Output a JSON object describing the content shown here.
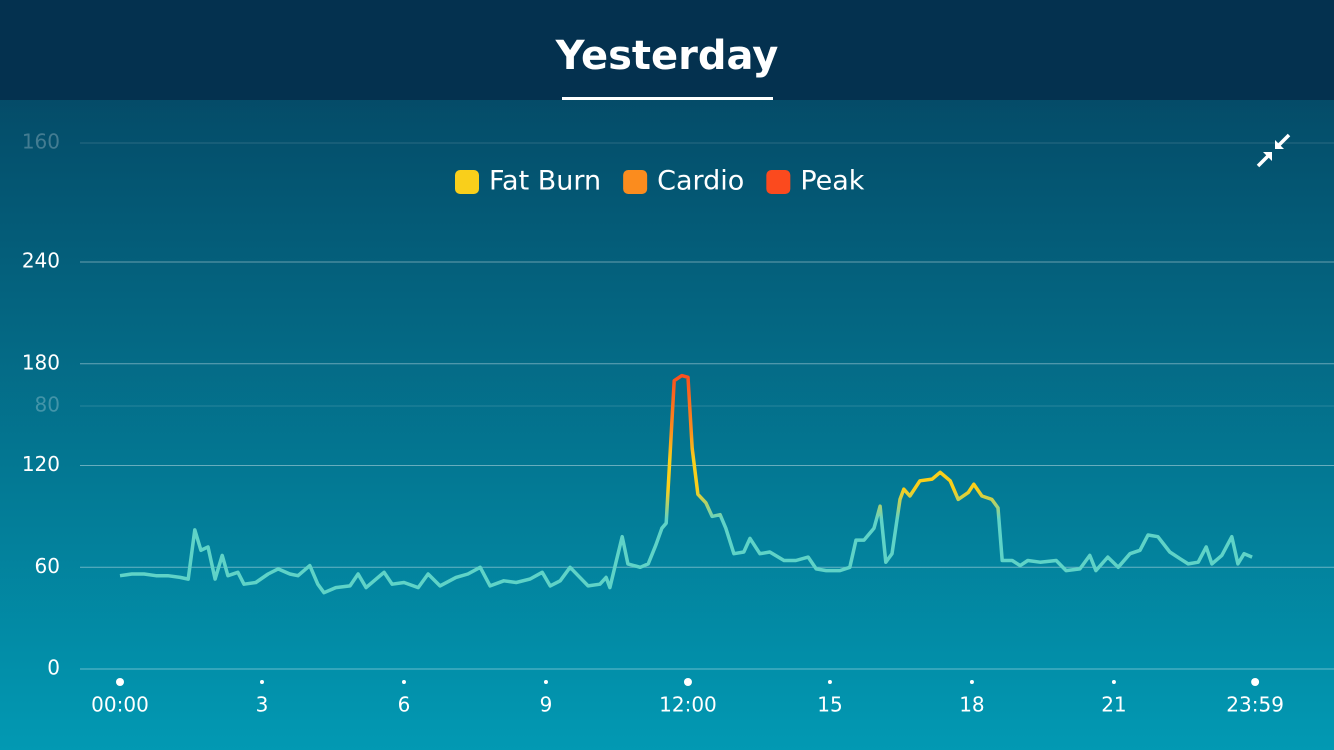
{
  "chart_data": {
    "type": "line",
    "title": "Yesterday",
    "zones": [
      {
        "name": "Fat Burn",
        "color": "#f9cf1b"
      },
      {
        "name": "Cardio",
        "color": "#fb8c1e"
      },
      {
        "name": "Peak",
        "color": "#fb4a1e"
      }
    ],
    "line_color": "#5fd3c7",
    "x": [
      0.0,
      0.25,
      0.51,
      0.76,
      1.01,
      1.27,
      1.44,
      1.58,
      1.71,
      1.86,
      2.01,
      2.16,
      2.28,
      2.49,
      2.62,
      2.87,
      3.13,
      3.34,
      3.59,
      3.76,
      4.01,
      4.18,
      4.31,
      4.56,
      4.86,
      5.03,
      5.2,
      5.58,
      5.75,
      6.0,
      6.3,
      6.51,
      6.76,
      7.1,
      7.35,
      7.61,
      7.82,
      8.11,
      8.37,
      8.66,
      8.92,
      9.09,
      9.3,
      9.51,
      9.68,
      9.89,
      10.14,
      10.27,
      10.35,
      10.48,
      10.61,
      10.73,
      10.99,
      11.16,
      11.32,
      11.45,
      11.54,
      11.71,
      11.87,
      12.0,
      12.09,
      12.21,
      12.38,
      12.51,
      12.68,
      12.8,
      12.97,
      13.18,
      13.31,
      13.52,
      13.73,
      14.03,
      14.28,
      14.54,
      14.71,
      14.92,
      15.21,
      15.42,
      15.55,
      15.72,
      15.93,
      16.06,
      16.18,
      16.31,
      16.48,
      16.56,
      16.69,
      16.9,
      17.16,
      17.33,
      17.54,
      17.71,
      17.92,
      18.04,
      18.21,
      18.42,
      18.55,
      18.64,
      18.85,
      19.02,
      19.18,
      19.44,
      19.78,
      19.99,
      20.28,
      20.49,
      20.62,
      20.87,
      21.09,
      21.34,
      21.55,
      21.72,
      21.93,
      22.18,
      22.4,
      22.57,
      22.78,
      22.95,
      23.07,
      23.28,
      23.49,
      23.62,
      23.75,
      23.92
    ],
    "values": [
      55,
      56,
      56,
      55,
      55,
      54,
      53,
      82,
      70,
      72,
      53,
      67,
      55,
      57,
      50,
      51,
      56,
      59,
      56,
      55,
      61,
      50,
      45,
      48,
      49,
      56,
      48,
      57,
      50,
      51,
      48,
      56,
      49,
      54,
      56,
      60,
      49,
      52,
      51,
      53,
      57,
      49,
      52,
      60,
      55,
      49,
      50,
      54,
      48,
      63,
      78,
      62,
      60,
      62,
      73,
      83,
      86,
      170,
      173,
      172,
      130,
      103,
      98,
      90,
      91,
      83,
      68,
      69,
      77,
      68,
      69,
      64,
      64,
      66,
      59,
      58,
      58,
      60,
      76,
      76,
      83,
      96,
      63,
      68,
      100,
      106,
      102,
      111,
      112,
      116,
      111,
      100,
      104,
      109,
      102,
      100,
      95,
      64,
      64,
      61,
      64,
      63,
      64,
      58,
      59,
      67,
      58,
      66,
      60,
      68,
      70,
      79,
      78,
      69,
      65,
      62,
      63,
      72,
      62,
      67,
      78,
      62,
      68,
      66
    ],
    "xlim": [
      0,
      24
    ],
    "xticks": [
      {
        "value": 0,
        "label": "00:00"
      },
      3,
      6,
      9,
      {
        "value": 12,
        "label": "12:00"
      },
      15,
      18,
      21,
      {
        "value": 23.983,
        "label": "23:59"
      }
    ],
    "ylim": [
      0,
      240
    ],
    "yticks": [
      0,
      60,
      120,
      180,
      240
    ],
    "faded_labels": [
      "160",
      "80"
    ],
    "grid": true
  }
}
